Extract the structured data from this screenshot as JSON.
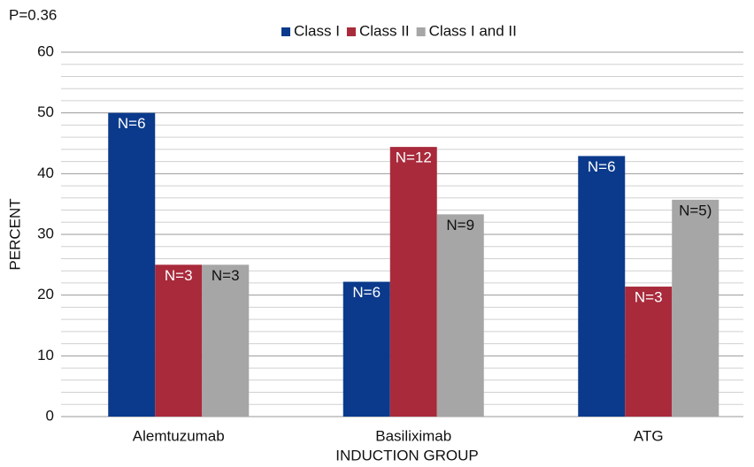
{
  "chart_data": {
    "type": "bar",
    "title": "P=0.36",
    "x_label": "INDUCTION GROUP",
    "y_label": "PERCENT",
    "categories": [
      "Alemtuzumab",
      "Basiliximab",
      "ATG"
    ],
    "series": [
      {
        "name": "Class I",
        "color": "#0b3a8c",
        "values": [
          50,
          22.2,
          42.9
        ],
        "labels": [
          "N=6",
          "N=6",
          "N=6"
        ]
      },
      {
        "name": "Class II",
        "color": "#a82a3b",
        "values": [
          25,
          44.4,
          21.4
        ],
        "labels": [
          "N=3",
          "N=12",
          "N=3"
        ]
      },
      {
        "name": "Class I and II",
        "color": "#a6a6a6",
        "values": [
          25,
          33.3,
          35.7
        ],
        "labels": [
          "N=3",
          "N=9",
          "N=5)"
        ]
      }
    ],
    "ylim": [
      0,
      60
    ],
    "yticks": [
      0,
      10,
      20,
      30,
      40,
      50,
      60
    ],
    "minor_yticks": [
      2,
      4,
      6,
      8,
      12,
      14,
      16,
      18,
      22,
      24,
      26,
      28,
      32,
      34,
      36,
      38,
      42,
      44,
      46,
      48,
      52,
      54,
      56,
      58
    ],
    "grid": true,
    "legend": "top"
  }
}
